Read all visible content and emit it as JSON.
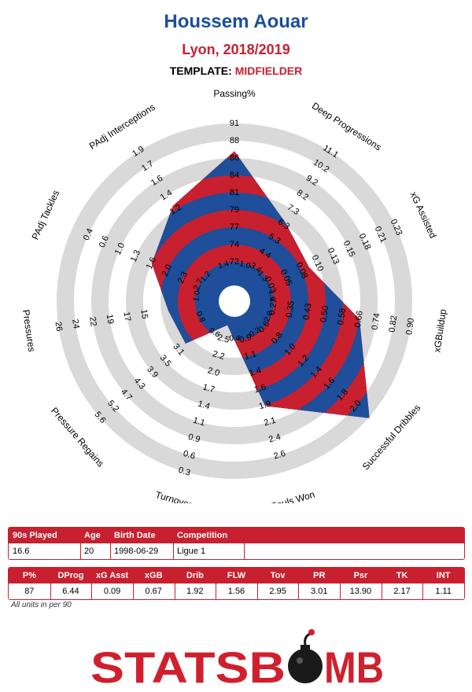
{
  "header": {
    "player_name": "Houssem Aouar",
    "team_season": "Lyon, 2018/2019",
    "template_label": "TEMPLATE:",
    "template_value": "MIDFIELDER"
  },
  "colors": {
    "red": "#c8202f",
    "blue": "#1f4e9a",
    "ring": "#d9d9d9",
    "title_blue": "#1a4f9c"
  },
  "chart_data": {
    "type": "radar",
    "ring_count": 10,
    "axes": [
      {
        "label": "Passing%",
        "ticks": [
          "72",
          "74",
          "77",
          "79",
          "81",
          "84",
          "86",
          "88",
          "91"
        ],
        "value": 87,
        "range": [
          70,
          93
        ]
      },
      {
        "label": "Deep Progressions",
        "ticks": [
          "3.4",
          "4.4",
          "5.3",
          "6.3",
          "7.3",
          "8.2",
          "9.2",
          "10.2",
          "11.1"
        ],
        "value": 6.44,
        "range": [
          2.5,
          12.0
        ]
      },
      {
        "label": "xG Assisted",
        "ticks": [
          "0.03",
          "0.05",
          "0.08",
          "0.10",
          "0.13",
          "0.15",
          "0.18",
          "0.21",
          "0.23"
        ],
        "value": 0.09,
        "range": [
          0.0,
          0.26
        ]
      },
      {
        "label": "xGBuildup",
        "ticks": [
          "0.27",
          "0.35",
          "0.43",
          "0.50",
          "0.58",
          "0.66",
          "0.74",
          "0.82",
          "0.90"
        ],
        "value": 0.67,
        "range": [
          0.2,
          0.98
        ]
      },
      {
        "label": "Successful Dribbles",
        "ticks": [
          "0.6",
          "0.8",
          "1.0",
          "1.2",
          "1.4",
          "1.6",
          "1.8",
          "2.0"
        ],
        "value": 1.92,
        "range": [
          0.2,
          2.1
        ]
      },
      {
        "label": "Fouls Won",
        "ticks": [
          "0.9",
          "1.1",
          "1.4",
          "1.6",
          "1.9",
          "2.1",
          "2.4",
          "2.6"
        ],
        "value": 1.56,
        "range": [
          0.2,
          2.9
        ]
      },
      {
        "label": "Turnovers",
        "ticks": [
          "2.5",
          "2.2",
          "2.0",
          "1.7",
          "1.4",
          "1.1",
          "0.9",
          "0.6",
          "0.3"
        ],
        "value": 2.95,
        "range": [
          3.0,
          0.0
        ]
      },
      {
        "label": "Pressure Regains",
        "ticks": [
          "3.1",
          "3.5",
          "3.9",
          "4.3",
          "4.7",
          "5.2",
          "5.6"
        ],
        "value": 3.01,
        "range": [
          2.0,
          6.1
        ]
      },
      {
        "label": "Pressures",
        "ticks": [
          "15",
          "17",
          "19",
          "22",
          "24",
          "26"
        ],
        "value": 13.9,
        "range": [
          9.0,
          28.0
        ]
      },
      {
        "label": "PAdj Tackles",
        "ticks": [
          "2.7",
          "2.3",
          "2.0",
          "1.6",
          "1.3",
          "1.0",
          "0.6",
          "0.4"
        ],
        "value": 2.17,
        "range": [
          3.6,
          0.0
        ]
      },
      {
        "label": "PAdj Interceptions",
        "ticks": [
          "1.2",
          "1.4",
          "1.6",
          "1.7",
          "1.9"
        ],
        "value": 1.11,
        "range": [
          0.0,
          2.1
        ]
      }
    ],
    "tick_slots": [
      [
        1,
        2,
        3,
        4,
        5,
        6,
        7,
        8,
        9
      ],
      [
        1,
        2,
        3,
        4,
        5,
        6,
        7,
        8,
        9
      ],
      [
        1,
        2,
        3,
        4,
        5,
        6,
        7,
        8,
        9
      ],
      [
        1,
        2,
        3,
        4,
        5,
        6,
        7,
        8,
        9
      ],
      [
        1,
        2,
        3,
        4,
        5,
        6,
        7,
        8
      ],
      [
        1,
        2,
        3,
        4,
        5,
        6,
        7,
        8
      ],
      [
        1,
        2,
        3,
        4,
        5,
        6,
        7,
        8,
        9
      ],
      [
        3,
        4,
        5,
        6,
        7,
        8,
        9
      ],
      [
        4,
        5,
        6,
        7,
        8,
        9
      ],
      [
        1,
        2,
        3,
        4,
        5,
        6,
        7,
        8
      ],
      [
        5,
        6,
        7,
        8,
        9
      ]
    ],
    "inner_labels": [
      "1.0",
      "1.3",
      "1.6",
      "2.0",
      "0.2",
      "0.4",
      "0.6",
      "0.8",
      "1.0",
      "1.2",
      "1.4"
    ]
  },
  "info_table": {
    "headers": [
      "90s Played",
      "Age",
      "Birth Date",
      "Competition"
    ],
    "values": [
      "16.6",
      "20",
      "1998-06-29",
      "Ligue 1"
    ]
  },
  "stats_table": {
    "headers": [
      "P%",
      "DProg",
      "xG Asst",
      "xGB",
      "Drib",
      "FLW",
      "Tov",
      "PR",
      "Psr",
      "TK",
      "INT"
    ],
    "values": [
      "87",
      "6.44",
      "0.09",
      "0.67",
      "1.92",
      "1.56",
      "2.95",
      "3.01",
      "13.90",
      "2.17",
      "1.11"
    ]
  },
  "footnote": "All units in per 90",
  "logo": {
    "text_left": "STATSB",
    "text_right": "MB",
    "icon": "bomb-icon"
  }
}
